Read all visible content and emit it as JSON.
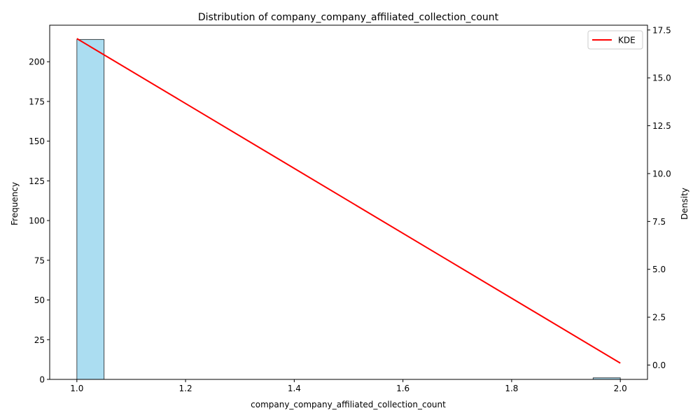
{
  "chart_data": {
    "type": "bar",
    "title": "Distribution of company_company_affiliated_collection_count",
    "xlabel": "company_company_affiliated_collection_count",
    "ylabel": "Frequency",
    "y2label": "Density",
    "xlim": [
      0.95,
      2.05
    ],
    "ylim": [
      0,
      223
    ],
    "y2lim": [
      -0.75,
      17.75
    ],
    "xticks": [
      "1.0",
      "1.2",
      "1.4",
      "1.6",
      "1.8",
      "2.0"
    ],
    "yticks": [
      "0",
      "25",
      "50",
      "75",
      "100",
      "125",
      "150",
      "175",
      "200"
    ],
    "y2ticks": [
      "0.0",
      "2.5",
      "5.0",
      "7.5",
      "10.0",
      "12.5",
      "15.0",
      "17.5"
    ],
    "histogram": {
      "bins": [
        {
          "x0": 1.0,
          "x1": 1.05,
          "count": 214
        },
        {
          "x0": 1.95,
          "x1": 2.0,
          "count": 1
        }
      ],
      "color": "#87ceeb",
      "edgecolor": "#000000"
    },
    "series": [
      {
        "name": "KDE",
        "x": [
          1.0,
          2.0
        ],
        "y": [
          17.05,
          0.1
        ],
        "color": "#ff0000"
      }
    ],
    "legend": {
      "position": "top-right",
      "entries": [
        "KDE"
      ]
    },
    "grid": false
  }
}
